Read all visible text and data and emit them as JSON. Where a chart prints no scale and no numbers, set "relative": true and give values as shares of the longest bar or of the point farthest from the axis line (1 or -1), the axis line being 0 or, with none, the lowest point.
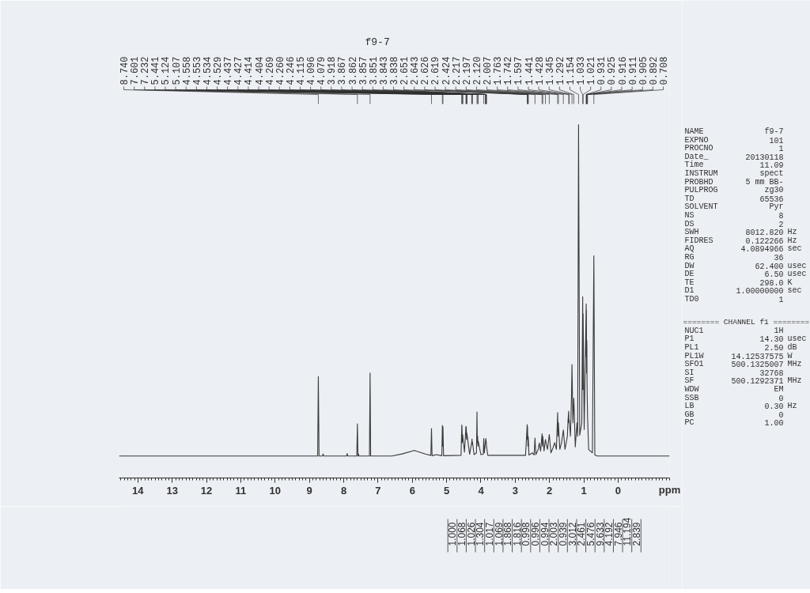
{
  "chart_data": [
    {
      "type": "line",
      "title": "f9-7",
      "xlabel": "ppm",
      "relative": true,
      "xlim": [
        14.55,
        -1.5
      ],
      "xticks": [
        14,
        13,
        12,
        11,
        10,
        9,
        8,
        7,
        6,
        5,
        4,
        3,
        2,
        1,
        0
      ],
      "color": "#3a3a3a",
      "x": [
        14.55,
        8.76,
        8.74,
        8.72,
        8.62,
        8.6,
        8.58,
        7.92,
        7.9,
        7.88,
        7.62,
        7.601,
        7.585,
        7.57,
        7.555,
        7.25,
        7.232,
        7.215,
        6.6,
        6.3,
        5.94,
        5.6,
        5.46,
        5.441,
        5.425,
        5.3,
        5.14,
        5.124,
        5.116,
        5.107,
        5.09,
        4.58,
        4.558,
        4.553,
        4.545,
        4.534,
        4.529,
        4.48,
        4.437,
        4.427,
        4.42,
        4.414,
        4.404,
        4.33,
        4.269,
        4.26,
        4.253,
        4.246,
        4.2,
        4.13,
        4.115,
        4.105,
        4.096,
        4.088,
        4.079,
        4.0,
        3.93,
        3.918,
        3.9,
        3.867,
        3.862,
        3.857,
        3.851,
        3.843,
        3.838,
        3.8,
        2.7,
        2.651,
        2.647,
        2.643,
        2.63,
        2.626,
        2.619,
        2.6,
        2.5,
        2.45,
        2.424,
        2.4,
        2.33,
        2.3,
        2.26,
        2.217,
        2.207,
        2.197,
        2.16,
        2.12,
        2.06,
        2.007,
        1.96,
        1.9,
        1.85,
        1.8,
        1.763,
        1.752,
        1.742,
        1.7,
        1.65,
        1.597,
        1.55,
        1.48,
        1.46,
        1.441,
        1.435,
        1.428,
        1.39,
        1.36,
        1.345,
        1.32,
        1.292,
        1.25,
        1.2,
        1.18,
        1.154,
        1.12,
        1.06,
        1.033,
        1.027,
        1.021,
        0.99,
        0.931,
        0.928,
        0.925,
        0.92,
        0.916,
        0.911,
        0.905,
        0.892,
        0.86,
        0.75,
        0.708,
        0.68,
        0.6,
        -1.5
      ],
      "values": [
        0.062,
        0.062,
        0.287,
        0.062,
        0.062,
        0.068,
        0.062,
        0.062,
        0.069,
        0.062,
        0.062,
        0.153,
        0.062,
        0.068,
        0.062,
        0.062,
        0.297,
        0.062,
        0.062,
        0.068,
        0.078,
        0.067,
        0.064,
        0.14,
        0.063,
        0.066,
        0.063,
        0.149,
        0.09,
        0.145,
        0.063,
        0.064,
        0.15,
        0.146,
        0.1,
        0.123,
        0.118,
        0.073,
        0.146,
        0.143,
        0.109,
        0.128,
        0.123,
        0.067,
        0.1,
        0.11,
        0.095,
        0.101,
        0.066,
        0.071,
        0.187,
        0.1,
        0.118,
        0.09,
        0.104,
        0.066,
        0.067,
        0.112,
        0.071,
        0.104,
        0.109,
        0.112,
        0.107,
        0.1,
        0.09,
        0.064,
        0.064,
        0.151,
        0.109,
        0.146,
        0.09,
        0.118,
        0.114,
        0.065,
        0.071,
        0.065,
        0.113,
        0.066,
        0.081,
        0.099,
        0.076,
        0.125,
        0.09,
        0.118,
        0.076,
        0.109,
        0.081,
        0.123,
        0.071,
        0.085,
        0.1,
        0.081,
        0.185,
        0.118,
        0.156,
        0.081,
        0.1,
        0.136,
        0.081,
        0.118,
        0.165,
        0.189,
        0.156,
        0.165,
        0.118,
        0.231,
        0.321,
        0.156,
        0.226,
        0.088,
        0.156,
        0.118,
        1.0,
        0.121,
        0.156,
        0.513,
        0.25,
        0.465,
        0.137,
        0.493,
        0.343,
        0.475,
        0.297,
        0.39,
        0.372,
        0.25,
        0.175,
        0.081,
        0.071,
        0.629,
        0.065,
        0.062,
        0.062
      ],
      "annotations": [
        "8.740",
        "7.601",
        "7.232",
        "5.441",
        "5.124",
        "5.107",
        "4.558",
        "4.553",
        "4.534",
        "4.529",
        "4.437",
        "4.427",
        "4.414",
        "4.404",
        "4.269",
        "4.260",
        "4.246",
        "4.115",
        "4.096",
        "4.079",
        "3.918",
        "3.867",
        "3.862",
        "3.857",
        "3.851",
        "3.843",
        "3.838",
        "2.651",
        "2.643",
        "2.626",
        "2.619",
        "2.424",
        "2.217",
        "2.197",
        "2.120",
        "2.007",
        "1.763",
        "1.742",
        "1.597",
        "1.441",
        "1.428",
        "1.345",
        "1.292",
        "1.154",
        "1.033",
        "1.021",
        "0.931",
        "0.925",
        "0.916",
        "0.911",
        "0.905",
        "0.892",
        "0.708"
      ]
    },
    {
      "type": "other",
      "annotations": [
        "1.000",
        "1.068",
        "1.026",
        "1.304",
        "1.017",
        "1.069",
        "1.868",
        "1.816",
        "0.998",
        "0.996",
        "0.994",
        "2.003",
        "0.939",
        "3.012",
        "2.461",
        "5.476",
        "9.633",
        "4.192",
        "7.946",
        "11.194",
        "2.839"
      ]
    },
    {
      "type": "other",
      "annotations": [
        "NAME\tf9-7",
        "EXPNO\t101",
        "PROCNO\t1",
        "Date_\t20130118",
        "Time\t11.09",
        "INSTRUM\tspect",
        "PROBHD\t5 mm BB-",
        "PULPROG\tzg30",
        "TD\t65536",
        "SOLVENT\tPyr",
        "NS\t8",
        "DS\t2",
        "SWH\t8012.820\tHz",
        "FIDRES\t0.122266\tHz",
        "AQ\t4.0894966\tsec",
        "RG\t36",
        "DW\t62.400\tusec",
        "DE\t6.50\tusec",
        "TE\t298.0\tK",
        "D1\t1.00000000\tsec",
        "TD0\t1",
        "======== CHANNEL f1 ========",
        "NUC1\t1H",
        "P1\t14.30\tusec",
        "PL1\t2.50\tdB",
        "PL1W\t14.12537575\tW",
        "SFO1\t500.1325007\tMHz",
        "SI\t32768",
        "SF\t500.1292371\tMHz",
        "WDW\tEM",
        "SSB\t0",
        "LB\t0.30\tHz",
        "GB\t0",
        "PC\t1.00"
      ]
    }
  ]
}
